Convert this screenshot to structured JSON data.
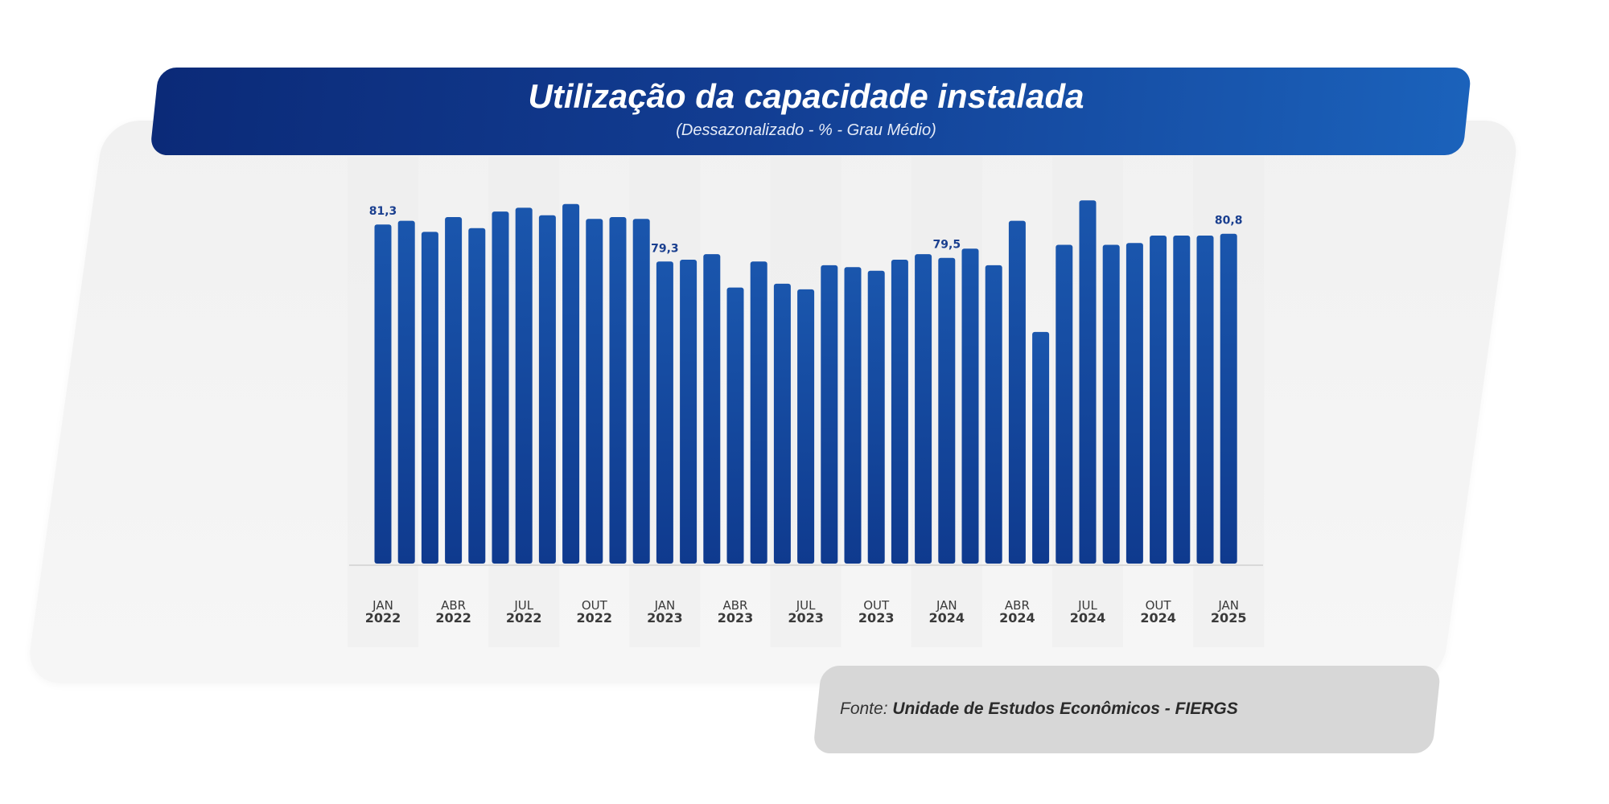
{
  "header": {
    "title": "Utilização da capacidade instalada",
    "subtitle": "(Dessazonalizado - % - Grau Médio)"
  },
  "source": {
    "prefix": "Fonte: ",
    "name": "Unidade de Estudos Econômicos - FIERGS"
  },
  "colors": {
    "bar": "#123f95",
    "bar_light": "#1a56ad",
    "banner_dark": "#0b2a78",
    "banner_light": "#1b62bb"
  },
  "chart_data": {
    "type": "bar",
    "title": "Utilização da capacidade instalada",
    "subtitle": "(Dessazonalizado - % - Grau Médio)",
    "ylim": [
      63,
      83
    ],
    "grid": false,
    "ticks": [
      {
        "index": 0,
        "month": "JAN",
        "year": "2022"
      },
      {
        "index": 3,
        "month": "ABR",
        "year": "2022"
      },
      {
        "index": 6,
        "month": "JUL",
        "year": "2022"
      },
      {
        "index": 9,
        "month": "OUT",
        "year": "2022"
      },
      {
        "index": 12,
        "month": "JAN",
        "year": "2023"
      },
      {
        "index": 15,
        "month": "ABR",
        "year": "2023"
      },
      {
        "index": 18,
        "month": "JUL",
        "year": "2023"
      },
      {
        "index": 21,
        "month": "OUT",
        "year": "2023"
      },
      {
        "index": 24,
        "month": "JAN",
        "year": "2024"
      },
      {
        "index": 27,
        "month": "ABR",
        "year": "2024"
      },
      {
        "index": 30,
        "month": "JUL",
        "year": "2024"
      },
      {
        "index": 33,
        "month": "OUT",
        "year": "2024"
      },
      {
        "index": 36,
        "month": "JAN",
        "year": "2025"
      }
    ],
    "labeled": [
      {
        "index": 0,
        "text": "81,3"
      },
      {
        "index": 12,
        "text": "79,3"
      },
      {
        "index": 24,
        "text": "79,5"
      },
      {
        "index": 36,
        "text": "80,8"
      }
    ],
    "values": [
      81.3,
      81.5,
      80.9,
      81.7,
      81.1,
      82.0,
      82.2,
      81.8,
      82.4,
      81.6,
      81.7,
      81.6,
      79.3,
      79.4,
      79.7,
      77.9,
      79.3,
      78.1,
      77.8,
      79.1,
      79.0,
      78.8,
      79.4,
      79.7,
      79.5,
      80.0,
      79.1,
      81.5,
      75.5,
      80.2,
      82.6,
      80.2,
      80.3,
      80.7,
      80.7,
      80.7,
      80.8
    ]
  }
}
